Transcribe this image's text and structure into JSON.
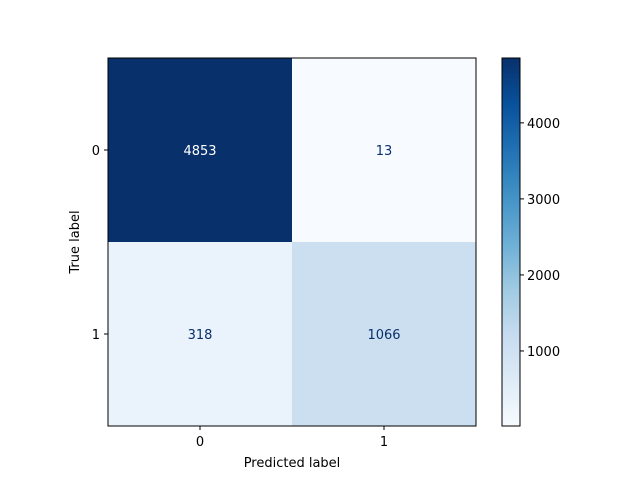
{
  "chart_data": {
    "type": "heatmap",
    "colormap": "Blues",
    "x_categories": [
      "0",
      "1"
    ],
    "y_categories": [
      "0",
      "1"
    ],
    "values": [
      [
        4853,
        13
      ],
      [
        318,
        1066
      ]
    ],
    "xlabel": "Predicted label",
    "ylabel": "True label",
    "colorbar": {
      "ticks": [
        1000,
        2000,
        3000,
        4000
      ],
      "range": [
        13,
        4853
      ]
    },
    "text_colors": {
      "light": "#ffffff",
      "dark": "#08306b"
    }
  }
}
